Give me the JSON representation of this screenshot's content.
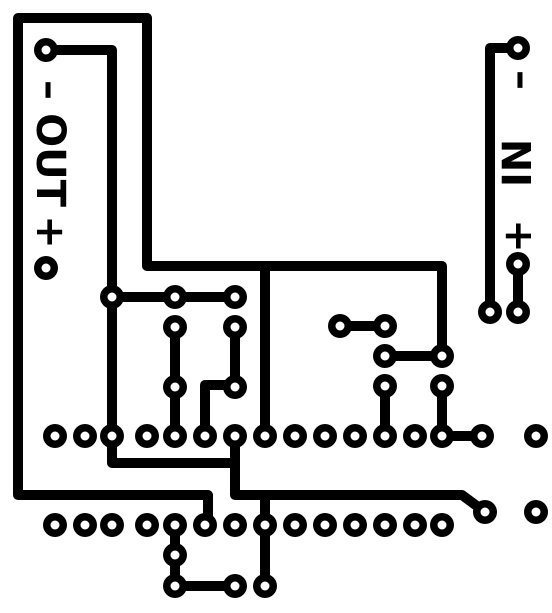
{
  "labels": {
    "out_minus": "–",
    "out_text": "OUT",
    "out_plus": "+",
    "in_minus": "–",
    "in_text": "IN",
    "in_plus": "+"
  },
  "colors": {
    "copper": "#000000",
    "board": "#ffffff"
  }
}
